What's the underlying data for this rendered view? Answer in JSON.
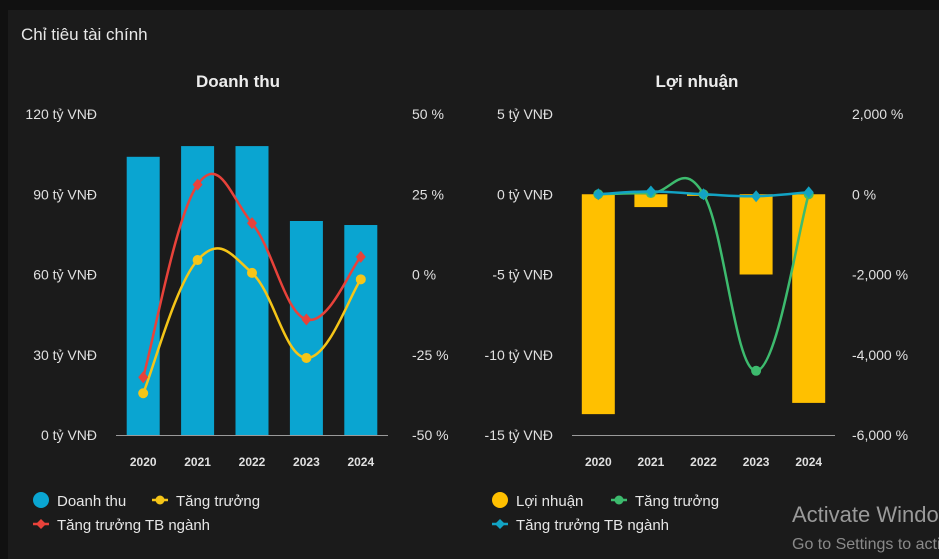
{
  "panel_title": "Chỉ tiêu tài chính",
  "colors": {
    "bar_blue": "#0aa5d1",
    "bar_yellow": "#ffc000",
    "line_yellow": "#f5c518",
    "line_red": "#e8423a",
    "line_green": "#3dbb6e",
    "line_cyan": "#12a3c4",
    "axis": "#9a9a9a"
  },
  "watermark": {
    "title": "Activate Windows",
    "subtitle": "Go to Settings to activate Windows."
  },
  "chart_data": [
    {
      "type": "bar",
      "title": "Doanh thu",
      "categories": [
        "2020",
        "2021",
        "2022",
        "2023",
        "2024"
      ],
      "y_left": {
        "ticks": [
          "120 tỷ VNĐ",
          "90 tỷ VNĐ",
          "60 tỷ VNĐ",
          "30 tỷ VNĐ",
          "0 tỷ VNĐ"
        ],
        "range": [
          0,
          120
        ]
      },
      "y_right": {
        "ticks": [
          "50 %",
          "25 %",
          "0 %",
          "-25 %",
          "-50 %"
        ],
        "range": [
          -50,
          50
        ]
      },
      "series": [
        {
          "name": "Doanh thu",
          "kind": "bar",
          "axis": "left",
          "color": "#0aa5d1",
          "marker": "circle",
          "values": [
            104,
            108,
            108,
            80,
            78.5
          ]
        },
        {
          "name": "Tăng trưởng",
          "kind": "line",
          "axis": "right",
          "color": "#f5c518",
          "marker": "line-dot",
          "values": [
            -37,
            4.5,
            0.5,
            -26,
            -1.5
          ]
        },
        {
          "name": "Tăng trưởng TB ngành",
          "kind": "line",
          "axis": "right",
          "color": "#e8423a",
          "marker": "line-diamond",
          "values": [
            -32,
            28,
            16,
            -14,
            5.5
          ]
        }
      ],
      "legend": "bottom-left",
      "grid": false
    },
    {
      "type": "bar",
      "title": "Lợi nhuận",
      "categories": [
        "2020",
        "2021",
        "2022",
        "2023",
        "2024"
      ],
      "y_left": {
        "ticks": [
          "5 tỷ VNĐ",
          "0 tỷ VNĐ",
          "-5 tỷ VNĐ",
          "-10 tỷ VNĐ",
          "-15 tỷ VNĐ"
        ],
        "range": [
          -15,
          5
        ]
      },
      "y_right": {
        "ticks": [
          "2,000 %",
          "0 %",
          "-2,000 %",
          "-4,000 %",
          "-6,000 %"
        ],
        "range": [
          -6000,
          2000
        ]
      },
      "series": [
        {
          "name": "Lợi nhuận",
          "kind": "bar",
          "axis": "left",
          "color": "#ffc000",
          "marker": "circle",
          "values": [
            -13.7,
            -0.8,
            -0.1,
            -5,
            -13
          ]
        },
        {
          "name": "Tăng trưởng",
          "kind": "line",
          "axis": "right",
          "color": "#3dbb6e",
          "marker": "line-dot",
          "values": [
            0,
            30,
            0,
            -4400,
            0
          ]
        },
        {
          "name": "Tăng trưởng TB ngành",
          "kind": "line",
          "axis": "right",
          "color": "#12a3c4",
          "marker": "line-diamond",
          "values": [
            0,
            70,
            0,
            -50,
            50
          ]
        }
      ],
      "legend": "bottom-left",
      "grid": false
    }
  ]
}
